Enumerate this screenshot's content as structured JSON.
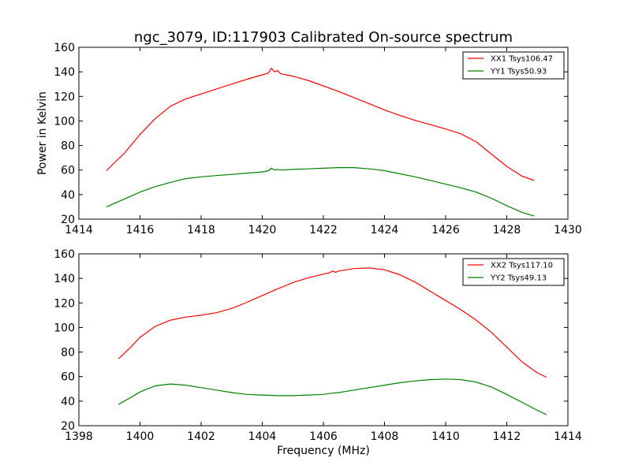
{
  "figure": {
    "title": "ngc_3079, ID:117903 Calibrated On-source spectrum"
  },
  "chart_data": [
    {
      "type": "line",
      "title": "ngc_3079, ID:117903 Calibrated On-source spectrum",
      "xlabel": "",
      "ylabel": "Power in Kelvin",
      "xlim": [
        1414,
        1430
      ],
      "ylim": [
        20,
        160
      ],
      "xticks": [
        1414,
        1416,
        1418,
        1420,
        1422,
        1424,
        1426,
        1428,
        1430
      ],
      "yticks": [
        20,
        40,
        60,
        80,
        100,
        120,
        140,
        160
      ],
      "grid": false,
      "legend_position": "top-right",
      "series": [
        {
          "name": "XX1 Tsys106.47",
          "color": "#ff0000",
          "x": [
            1414.9,
            1415.5,
            1416.0,
            1416.5,
            1417.0,
            1417.5,
            1418.0,
            1418.5,
            1419.0,
            1419.5,
            1420.0,
            1420.2,
            1420.3,
            1420.4,
            1420.5,
            1420.6,
            1420.7,
            1420.8,
            1421.0,
            1421.5,
            1422.0,
            1422.5,
            1423.0,
            1423.5,
            1424.0,
            1424.5,
            1425.0,
            1425.5,
            1426.0,
            1426.5,
            1427.0,
            1427.5,
            1428.0,
            1428.5,
            1428.9
          ],
          "y": [
            59.5,
            74,
            89,
            102,
            112,
            118,
            122,
            126,
            130,
            134,
            137.5,
            139,
            143,
            140,
            141,
            138.5,
            138,
            137.5,
            136.5,
            133,
            128.5,
            124,
            119,
            114,
            109,
            104.5,
            100.5,
            97,
            93.5,
            89.5,
            83,
            73,
            63,
            55,
            51.5
          ]
        },
        {
          "name": "YY1 Tsys50.93",
          "color": "#008000",
          "x": [
            1414.9,
            1415.5,
            1416.0,
            1416.5,
            1417.0,
            1417.5,
            1418.0,
            1418.5,
            1419.0,
            1419.5,
            1420.0,
            1420.2,
            1420.3,
            1420.4,
            1420.5,
            1420.6,
            1420.7,
            1421.0,
            1421.5,
            1422.0,
            1422.5,
            1423.0,
            1423.5,
            1424.0,
            1424.5,
            1425.0,
            1425.5,
            1426.0,
            1426.5,
            1427.0,
            1427.5,
            1428.0,
            1428.5,
            1428.9
          ],
          "y": [
            30,
            36.5,
            42,
            46.5,
            50,
            53,
            54.5,
            55.5,
            56.5,
            57.5,
            58.5,
            59.5,
            61.5,
            60,
            60.5,
            60,
            60,
            60.5,
            61,
            61.5,
            62,
            62,
            61,
            59.5,
            57,
            54.5,
            51.5,
            48.5,
            45.5,
            42,
            37,
            31,
            25.5,
            22.5
          ]
        }
      ]
    },
    {
      "type": "line",
      "title": "",
      "xlabel": "Frequency (MHz)",
      "ylabel": "",
      "xlim": [
        1398,
        1414
      ],
      "ylim": [
        20,
        160
      ],
      "xticks": [
        1398,
        1400,
        1402,
        1404,
        1406,
        1408,
        1410,
        1412,
        1414
      ],
      "yticks": [
        20,
        40,
        60,
        80,
        100,
        120,
        140,
        160
      ],
      "grid": false,
      "legend_position": "top-right",
      "series": [
        {
          "name": "XX2 Tsys117.10",
          "color": "#ff0000",
          "x": [
            1399.3,
            1399.7,
            1400.0,
            1400.5,
            1401.0,
            1401.5,
            1402.0,
            1402.5,
            1403.0,
            1403.5,
            1404.0,
            1404.5,
            1405.0,
            1405.5,
            1406.0,
            1406.2,
            1406.3,
            1406.4,
            1406.5,
            1407.0,
            1407.5,
            1408.0,
            1408.5,
            1409.0,
            1409.5,
            1410.0,
            1410.5,
            1411.0,
            1411.5,
            1412.0,
            1412.5,
            1413.0,
            1413.3
          ],
          "y": [
            74.5,
            84,
            92,
            101,
            106,
            108.5,
            110,
            112,
            115.5,
            120.5,
            126,
            131.5,
            136.5,
            140.5,
            143.5,
            144.5,
            146,
            145,
            146,
            148,
            148.5,
            147,
            143,
            137,
            129.5,
            122,
            114.5,
            106,
            96,
            84,
            72,
            63,
            59.5
          ]
        },
        {
          "name": "YY2 Tsys49.13",
          "color": "#008000",
          "x": [
            1399.3,
            1399.7,
            1400.0,
            1400.5,
            1401.0,
            1401.5,
            1402.0,
            1402.5,
            1403.0,
            1403.5,
            1404.0,
            1404.5,
            1405.0,
            1405.5,
            1406.0,
            1406.3,
            1406.5,
            1407.0,
            1407.5,
            1408.0,
            1408.5,
            1409.0,
            1409.5,
            1410.0,
            1410.5,
            1411.0,
            1411.5,
            1412.0,
            1412.5,
            1413.0,
            1413.3
          ],
          "y": [
            37.5,
            43,
            47.5,
            52.5,
            54,
            53,
            51,
            49,
            47,
            45.5,
            45,
            44.5,
            44.5,
            45,
            45.5,
            46.5,
            47,
            49,
            51,
            53,
            55,
            56.5,
            57.5,
            58,
            57.5,
            55.5,
            51.5,
            45.5,
            39,
            32.5,
            29
          ]
        }
      ]
    }
  ]
}
